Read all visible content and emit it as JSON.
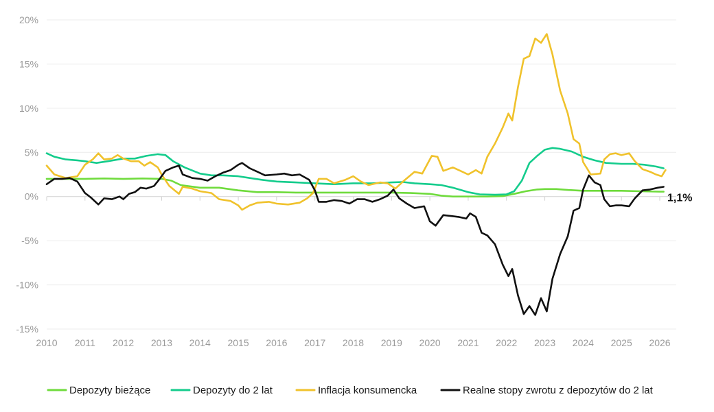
{
  "chart_data": {
    "type": "line",
    "title": "",
    "xlabel": "",
    "ylabel": "",
    "xlim": [
      2010,
      2026.25
    ],
    "ylim": [
      -15,
      20
    ],
    "grid": true,
    "legend_position": "bottom",
    "x_ticks": [
      "2010",
      "2011",
      "2012",
      "2013",
      "2014",
      "2015",
      "2016",
      "2017",
      "2018",
      "2019",
      "2020",
      "2021",
      "2022",
      "2023",
      "2024",
      "2025",
      "2026"
    ],
    "y_ticks": [
      {
        "value": 20,
        "label": "20%"
      },
      {
        "value": 15,
        "label": "15%"
      },
      {
        "value": 10,
        "label": "10%"
      },
      {
        "value": 5,
        "label": "5%"
      },
      {
        "value": 0,
        "label": "0%"
      },
      {
        "value": -5,
        "label": "-5%"
      },
      {
        "value": -10,
        "label": "-10%"
      },
      {
        "value": -15,
        "label": "-15%"
      }
    ],
    "end_label": "1,1%",
    "end_label_value": 1.1,
    "series": [
      {
        "name": "Depozyty bieżące",
        "color": "#6fdb3c",
        "points": [
          [
            2010,
            2.0
          ],
          [
            2010.5,
            2.0
          ],
          [
            2011,
            2.0
          ],
          [
            2011.5,
            2.05
          ],
          [
            2012,
            2.0
          ],
          [
            2012.5,
            2.05
          ],
          [
            2013,
            2.0
          ],
          [
            2013.25,
            1.8
          ],
          [
            2013.5,
            1.3
          ],
          [
            2014,
            1.0
          ],
          [
            2014.5,
            1.0
          ],
          [
            2015,
            0.7
          ],
          [
            2015.5,
            0.5
          ],
          [
            2016,
            0.5
          ],
          [
            2016.5,
            0.45
          ],
          [
            2017,
            0.45
          ],
          [
            2018,
            0.45
          ],
          [
            2019,
            0.45
          ],
          [
            2019.5,
            0.4
          ],
          [
            2020,
            0.3
          ],
          [
            2020.3,
            0.1
          ],
          [
            2020.6,
            0.0
          ],
          [
            2021,
            0.0
          ],
          [
            2021.5,
            0.0
          ],
          [
            2021.9,
            0.05
          ],
          [
            2022.2,
            0.3
          ],
          [
            2022.5,
            0.6
          ],
          [
            2022.8,
            0.8
          ],
          [
            2023,
            0.85
          ],
          [
            2023.3,
            0.85
          ],
          [
            2023.6,
            0.75
          ],
          [
            2024,
            0.65
          ],
          [
            2024.5,
            0.65
          ],
          [
            2025,
            0.65
          ],
          [
            2025.5,
            0.6
          ],
          [
            2026,
            0.55
          ],
          [
            2026.1,
            0.55
          ]
        ]
      },
      {
        "name": "Depozyty do 2 lat",
        "color": "#14cc8c",
        "points": [
          [
            2010,
            4.9
          ],
          [
            2010.2,
            4.5
          ],
          [
            2010.5,
            4.2
          ],
          [
            2010.8,
            4.1
          ],
          [
            2011,
            4.0
          ],
          [
            2011.3,
            3.8
          ],
          [
            2011.6,
            4.0
          ],
          [
            2012,
            4.3
          ],
          [
            2012.3,
            4.3
          ],
          [
            2012.6,
            4.6
          ],
          [
            2012.9,
            4.8
          ],
          [
            2013.1,
            4.7
          ],
          [
            2013.3,
            4.0
          ],
          [
            2013.6,
            3.3
          ],
          [
            2014,
            2.6
          ],
          [
            2014.3,
            2.4
          ],
          [
            2014.6,
            2.4
          ],
          [
            2015,
            2.3
          ],
          [
            2015.3,
            2.1
          ],
          [
            2015.6,
            1.9
          ],
          [
            2016,
            1.7
          ],
          [
            2016.5,
            1.6
          ],
          [
            2017,
            1.5
          ],
          [
            2017.5,
            1.4
          ],
          [
            2018,
            1.5
          ],
          [
            2018.5,
            1.5
          ],
          [
            2019,
            1.6
          ],
          [
            2019.3,
            1.65
          ],
          [
            2019.6,
            1.5
          ],
          [
            2020,
            1.4
          ],
          [
            2020.3,
            1.3
          ],
          [
            2020.6,
            1.0
          ],
          [
            2021,
            0.5
          ],
          [
            2021.3,
            0.25
          ],
          [
            2021.7,
            0.2
          ],
          [
            2022,
            0.25
          ],
          [
            2022.2,
            0.6
          ],
          [
            2022.4,
            1.8
          ],
          [
            2022.6,
            3.8
          ],
          [
            2022.8,
            4.6
          ],
          [
            2023,
            5.3
          ],
          [
            2023.2,
            5.5
          ],
          [
            2023.4,
            5.4
          ],
          [
            2023.7,
            5.1
          ],
          [
            2024,
            4.5
          ],
          [
            2024.3,
            4.1
          ],
          [
            2024.6,
            3.8
          ],
          [
            2025,
            3.7
          ],
          [
            2025.3,
            3.7
          ],
          [
            2025.6,
            3.6
          ],
          [
            2025.9,
            3.4
          ],
          [
            2026.1,
            3.2
          ]
        ]
      },
      {
        "name": "Inflacja konsumencka",
        "color": "#f0c22c",
        "points": [
          [
            2010,
            3.5
          ],
          [
            2010.2,
            2.5
          ],
          [
            2010.5,
            2.1
          ],
          [
            2010.8,
            2.3
          ],
          [
            2011,
            3.6
          ],
          [
            2011.2,
            4.2
          ],
          [
            2011.35,
            4.9
          ],
          [
            2011.5,
            4.2
          ],
          [
            2011.7,
            4.3
          ],
          [
            2011.85,
            4.7
          ],
          [
            2012,
            4.3
          ],
          [
            2012.2,
            4.0
          ],
          [
            2012.4,
            4.0
          ],
          [
            2012.55,
            3.5
          ],
          [
            2012.7,
            3.9
          ],
          [
            2012.9,
            3.3
          ],
          [
            2013,
            2.5
          ],
          [
            2013.2,
            1.2
          ],
          [
            2013.45,
            0.3
          ],
          [
            2013.55,
            1.1
          ],
          [
            2013.8,
            0.9
          ],
          [
            2014,
            0.6
          ],
          [
            2014.3,
            0.4
          ],
          [
            2014.5,
            -0.3
          ],
          [
            2014.8,
            -0.5
          ],
          [
            2015,
            -1.0
          ],
          [
            2015.1,
            -1.5
          ],
          [
            2015.3,
            -1.0
          ],
          [
            2015.5,
            -0.7
          ],
          [
            2015.8,
            -0.6
          ],
          [
            2016,
            -0.8
          ],
          [
            2016.3,
            -0.9
          ],
          [
            2016.6,
            -0.7
          ],
          [
            2016.8,
            -0.2
          ],
          [
            2016.95,
            0.4
          ],
          [
            2017.1,
            2.0
          ],
          [
            2017.3,
            2.0
          ],
          [
            2017.5,
            1.5
          ],
          [
            2017.8,
            1.9
          ],
          [
            2018,
            2.3
          ],
          [
            2018.2,
            1.7
          ],
          [
            2018.4,
            1.3
          ],
          [
            2018.7,
            1.6
          ],
          [
            2018.9,
            1.5
          ],
          [
            2019.1,
            0.9
          ],
          [
            2019.3,
            1.7
          ],
          [
            2019.6,
            2.8
          ],
          [
            2019.8,
            2.6
          ],
          [
            2020.05,
            4.6
          ],
          [
            2020.2,
            4.5
          ],
          [
            2020.35,
            2.9
          ],
          [
            2020.6,
            3.3
          ],
          [
            2020.8,
            2.9
          ],
          [
            2021,
            2.5
          ],
          [
            2021.2,
            3.0
          ],
          [
            2021.35,
            2.6
          ],
          [
            2021.5,
            4.5
          ],
          [
            2021.7,
            6.0
          ],
          [
            2021.9,
            7.8
          ],
          [
            2022.05,
            9.4
          ],
          [
            2022.15,
            8.6
          ],
          [
            2022.3,
            12.4
          ],
          [
            2022.45,
            15.6
          ],
          [
            2022.6,
            15.9
          ],
          [
            2022.75,
            17.9
          ],
          [
            2022.9,
            17.4
          ],
          [
            2023.05,
            18.4
          ],
          [
            2023.2,
            16.1
          ],
          [
            2023.4,
            12.0
          ],
          [
            2023.6,
            9.4
          ],
          [
            2023.75,
            6.5
          ],
          [
            2023.9,
            6.0
          ],
          [
            2024,
            3.9
          ],
          [
            2024.2,
            2.5
          ],
          [
            2024.45,
            2.6
          ],
          [
            2024.55,
            4.2
          ],
          [
            2024.7,
            4.8
          ],
          [
            2024.85,
            4.9
          ],
          [
            2025,
            4.7
          ],
          [
            2025.2,
            4.9
          ],
          [
            2025.35,
            4.0
          ],
          [
            2025.55,
            3.1
          ],
          [
            2025.75,
            2.8
          ],
          [
            2025.9,
            2.5
          ],
          [
            2026.05,
            2.3
          ],
          [
            2026.15,
            3.0
          ]
        ]
      },
      {
        "name": "Realne stopy zwrotu z depozytów do 2 lat",
        "color": "#111111",
        "points": [
          [
            2010,
            1.4
          ],
          [
            2010.2,
            2.0
          ],
          [
            2010.4,
            2.0
          ],
          [
            2010.6,
            2.1
          ],
          [
            2010.8,
            1.7
          ],
          [
            2011,
            0.4
          ],
          [
            2011.15,
            -0.1
          ],
          [
            2011.35,
            -0.9
          ],
          [
            2011.5,
            -0.2
          ],
          [
            2011.7,
            -0.3
          ],
          [
            2011.9,
            0.0
          ],
          [
            2012,
            -0.3
          ],
          [
            2012.15,
            0.3
          ],
          [
            2012.3,
            0.5
          ],
          [
            2012.45,
            1.0
          ],
          [
            2012.6,
            0.9
          ],
          [
            2012.8,
            1.2
          ],
          [
            2012.95,
            2.0
          ],
          [
            2013.1,
            2.9
          ],
          [
            2013.3,
            3.3
          ],
          [
            2013.45,
            3.5
          ],
          [
            2013.55,
            2.5
          ],
          [
            2013.8,
            2.1
          ],
          [
            2014,
            2.0
          ],
          [
            2014.2,
            1.8
          ],
          [
            2014.4,
            2.3
          ],
          [
            2014.6,
            2.7
          ],
          [
            2014.8,
            3.0
          ],
          [
            2015,
            3.6
          ],
          [
            2015.1,
            3.8
          ],
          [
            2015.3,
            3.2
          ],
          [
            2015.5,
            2.8
          ],
          [
            2015.7,
            2.4
          ],
          [
            2016,
            2.5
          ],
          [
            2016.2,
            2.6
          ],
          [
            2016.4,
            2.4
          ],
          [
            2016.6,
            2.5
          ],
          [
            2016.85,
            1.9
          ],
          [
            2017,
            0.7
          ],
          [
            2017.1,
            -0.6
          ],
          [
            2017.3,
            -0.6
          ],
          [
            2017.5,
            -0.4
          ],
          [
            2017.7,
            -0.5
          ],
          [
            2017.9,
            -0.8
          ],
          [
            2018.1,
            -0.3
          ],
          [
            2018.3,
            -0.3
          ],
          [
            2018.5,
            -0.6
          ],
          [
            2018.7,
            -0.3
          ],
          [
            2018.9,
            0.1
          ],
          [
            2019.05,
            0.8
          ],
          [
            2019.2,
            -0.2
          ],
          [
            2019.4,
            -0.8
          ],
          [
            2019.6,
            -1.3
          ],
          [
            2019.85,
            -1.1
          ],
          [
            2020,
            -2.8
          ],
          [
            2020.15,
            -3.3
          ],
          [
            2020.35,
            -2.1
          ],
          [
            2020.55,
            -2.2
          ],
          [
            2020.75,
            -2.3
          ],
          [
            2020.95,
            -2.5
          ],
          [
            2021.05,
            -1.9
          ],
          [
            2021.2,
            -2.3
          ],
          [
            2021.35,
            -4.1
          ],
          [
            2021.5,
            -4.4
          ],
          [
            2021.7,
            -5.4
          ],
          [
            2021.9,
            -7.7
          ],
          [
            2022.05,
            -9.0
          ],
          [
            2022.15,
            -8.2
          ],
          [
            2022.3,
            -11.2
          ],
          [
            2022.45,
            -13.3
          ],
          [
            2022.6,
            -12.4
          ],
          [
            2022.75,
            -13.4
          ],
          [
            2022.9,
            -11.5
          ],
          [
            2023.05,
            -13.0
          ],
          [
            2023.2,
            -9.3
          ],
          [
            2023.4,
            -6.5
          ],
          [
            2023.6,
            -4.5
          ],
          [
            2023.75,
            -1.6
          ],
          [
            2023.9,
            -1.3
          ],
          [
            2024,
            0.8
          ],
          [
            2024.15,
            2.4
          ],
          [
            2024.3,
            1.6
          ],
          [
            2024.45,
            1.3
          ],
          [
            2024.55,
            -0.3
          ],
          [
            2024.7,
            -1.1
          ],
          [
            2024.85,
            -1.0
          ],
          [
            2025,
            -1.0
          ],
          [
            2025.2,
            -1.1
          ],
          [
            2025.35,
            -0.2
          ],
          [
            2025.55,
            0.7
          ],
          [
            2025.75,
            0.8
          ],
          [
            2025.95,
            1.0
          ],
          [
            2026.1,
            1.1
          ]
        ]
      }
    ]
  }
}
